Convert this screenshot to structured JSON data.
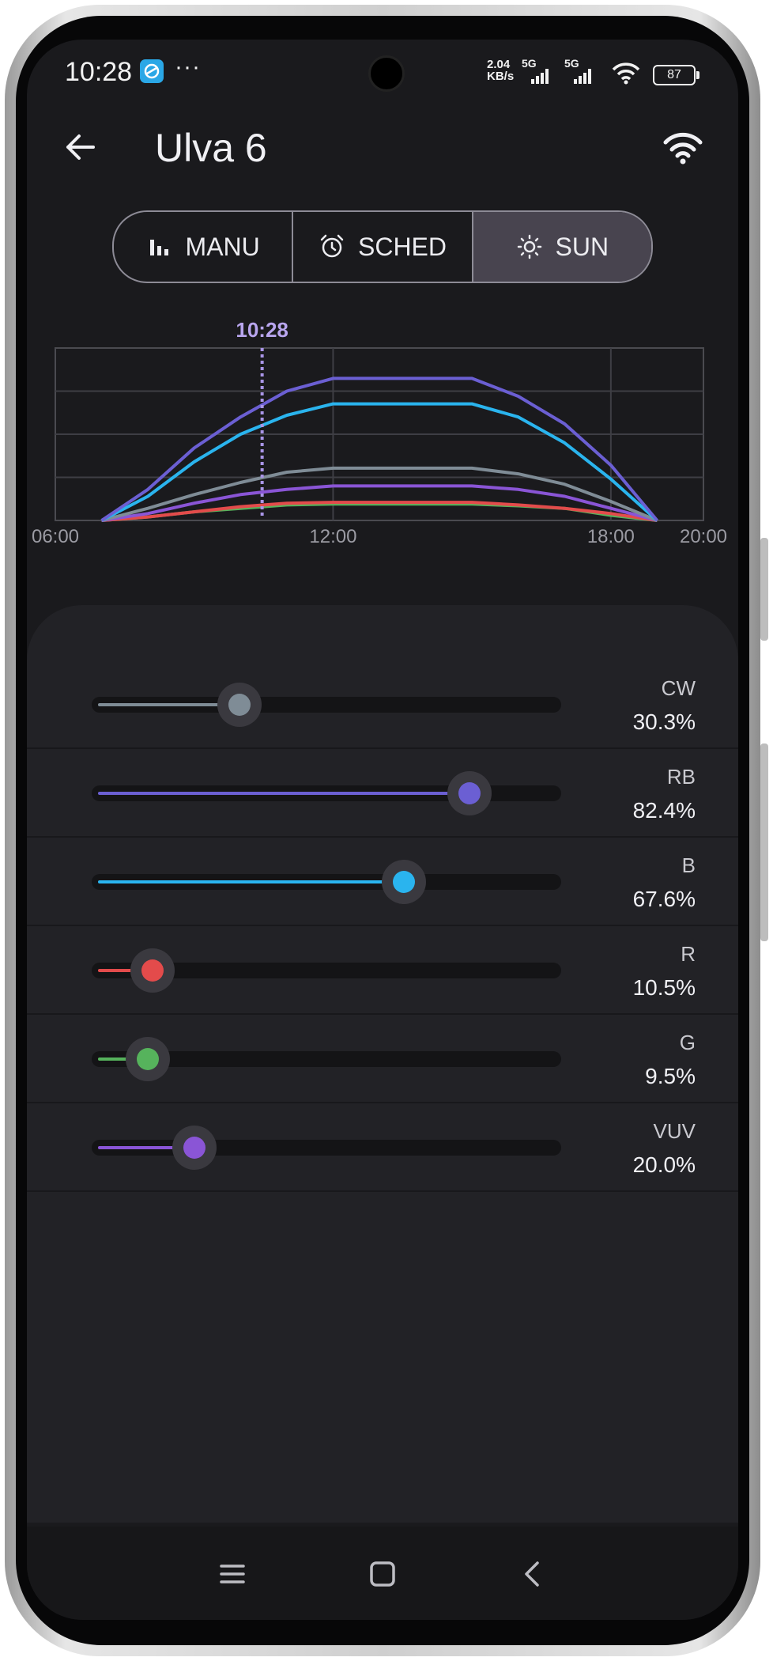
{
  "status_bar": {
    "time": "10:28",
    "dots": "···",
    "net_speed_value": "2.04",
    "net_speed_unit": "KB/s",
    "sim1_label": "5G",
    "sim2_label": "5G",
    "battery": "87"
  },
  "header": {
    "title": "Ulva 6"
  },
  "mode_tabs": [
    {
      "label": "MANU",
      "icon": "bar-chart-icon",
      "active": false
    },
    {
      "label": "SCHED",
      "icon": "alarm-clock-icon",
      "active": false
    },
    {
      "label": "SUN",
      "icon": "sun-icon",
      "active": true
    }
  ],
  "chart_data": {
    "type": "line",
    "current_time_label": "10:28",
    "current_time_hours": 10.467,
    "x_ticks": [
      "06:00",
      "12:00",
      "18:00",
      "20:00"
    ],
    "x_tick_hours": [
      6,
      12,
      18,
      20
    ],
    "xlim": [
      6,
      20
    ],
    "ylim": [
      0,
      100
    ],
    "grid": true,
    "x": [
      7,
      8,
      9,
      10,
      11,
      12,
      13,
      14,
      15,
      16,
      17,
      18,
      19
    ],
    "series": [
      {
        "color": "#6b5fd3",
        "values": [
          0,
          18,
          42,
          60,
          75,
          82.4,
          82.4,
          82.4,
          82.4,
          72,
          56,
          32,
          0
        ]
      },
      {
        "color": "#2ab4ee",
        "values": [
          0,
          14,
          34,
          50,
          61,
          67.6,
          67.6,
          67.6,
          67.6,
          60,
          45,
          24,
          0
        ]
      },
      {
        "color": "#7f8c96",
        "values": [
          0,
          7,
          15,
          22,
          28,
          30.3,
          30.3,
          30.3,
          30.3,
          27,
          21,
          11,
          0
        ]
      },
      {
        "color": "#8a55d6",
        "values": [
          0,
          4,
          10,
          15,
          18,
          20,
          20,
          20,
          20,
          18,
          14,
          7,
          0
        ]
      },
      {
        "color": "#e34b4b",
        "values": [
          0,
          2,
          5,
          8,
          10,
          10.5,
          10.5,
          10.5,
          10.5,
          9,
          7,
          4,
          0
        ]
      },
      {
        "color": "#56b35c",
        "values": [
          0,
          2,
          5,
          7,
          9,
          9.5,
          9.5,
          9.5,
          9.5,
          8.5,
          7,
          3,
          0
        ]
      }
    ]
  },
  "channels": [
    {
      "name": "CW",
      "value_text": "30.3%",
      "percent": 30.3,
      "color": "#7f8c96"
    },
    {
      "name": "RB",
      "value_text": "82.4%",
      "percent": 82.4,
      "color": "#6b5fd3"
    },
    {
      "name": "B",
      "value_text": "67.6%",
      "percent": 67.6,
      "color": "#2ab4ee"
    },
    {
      "name": "R",
      "value_text": "10.5%",
      "percent": 10.5,
      "color": "#e34b4b"
    },
    {
      "name": "G",
      "value_text": "9.5%",
      "percent": 9.5,
      "color": "#56b35c"
    },
    {
      "name": "VUV",
      "value_text": "20.0%",
      "percent": 20.0,
      "color": "#8a55d6"
    }
  ],
  "nav_bar": {
    "icons": [
      "menu-icon",
      "home-icon",
      "back-icon"
    ]
  }
}
